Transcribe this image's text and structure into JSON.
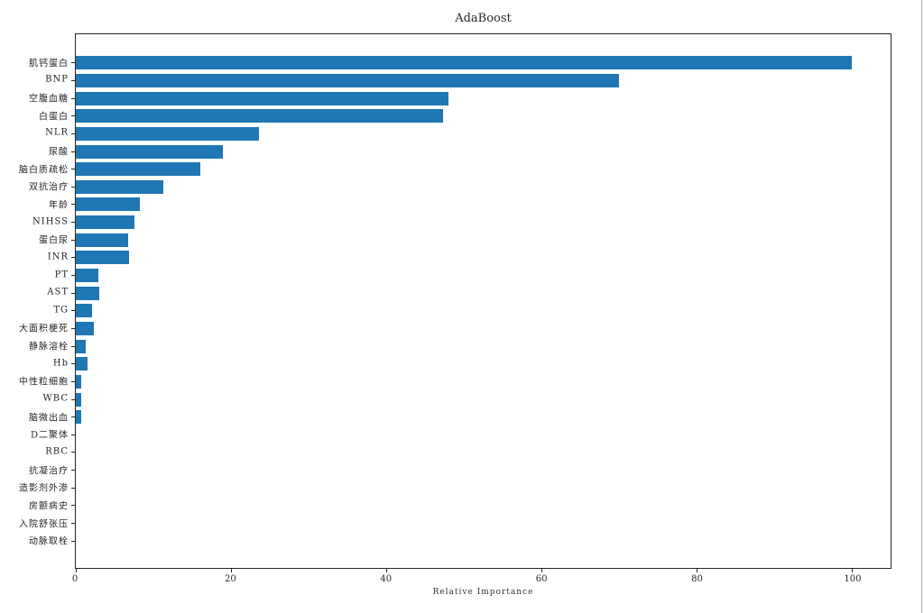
{
  "window": {
    "right_edge_color": "#b0b0b0"
  },
  "chart_data": {
    "type": "bar",
    "orientation": "horizontal",
    "title": "AdaBoost",
    "xlabel": "Relative Importance",
    "ylabel": "",
    "grid": false,
    "legend": null,
    "bar_color": "#1f77b4",
    "axis_color": "#262626",
    "xlim": [
      0,
      105
    ],
    "xticks": [
      0,
      20,
      40,
      60,
      80,
      100
    ],
    "categories": [
      "肌钙蛋白",
      "BNP",
      "空腹血糖",
      "白蛋白",
      "NLR",
      "尿酸",
      "脑白质疏松",
      "双抗治疗",
      "年龄",
      "NIHSS",
      "蛋白尿",
      "INR",
      "PT",
      "AST",
      "TG",
      "大面积梗死",
      "静脉溶栓",
      "Hb",
      "中性粒细胞",
      "WBC",
      "脑微出血",
      "D二聚体",
      "RBC",
      "抗凝治疗",
      "造影剂外渗",
      "房颤病史",
      "入院舒张压",
      "动脉取栓"
    ],
    "values": [
      100,
      70,
      48,
      47.3,
      23.6,
      19,
      16,
      11.3,
      8.3,
      7.5,
      6.8,
      6.9,
      2.9,
      3.0,
      2.1,
      2.3,
      1.3,
      1.5,
      0.75,
      0.7,
      0.7,
      0,
      0,
      0,
      0,
      0,
      0,
      0
    ]
  }
}
